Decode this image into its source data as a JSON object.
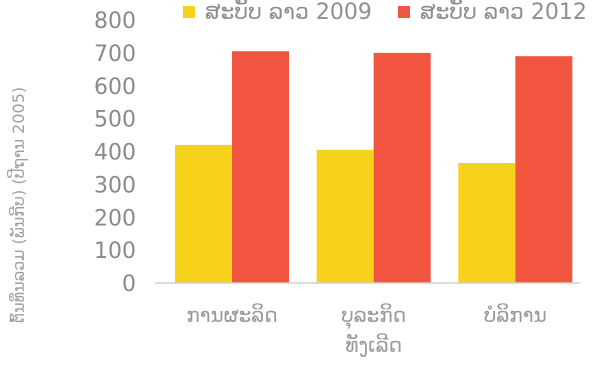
{
  "chart_data": {
    "type": "bar",
    "categories": [
      "ການຜະລິດ",
      "ບຸລະກິດ ທັງເລີດ",
      "ບໍລິການ"
    ],
    "series": [
      {
        "name": "ສະບັບ ລາວ 2009",
        "values": [
          420,
          405,
          365
        ],
        "color": "#f7d21a"
      },
      {
        "name": "ສະບັບ ລາວ 2012",
        "values": [
          705,
          700,
          690
        ],
        "color": "#f2553f"
      }
    ],
    "ylim": [
      0,
      800
    ],
    "yticks": [
      0,
      100,
      200,
      300,
      400,
      500,
      600,
      700,
      800
    ],
    "ylabel": "ຕົ້ນທຶນລວມ (ພັນກີບ) (ປີຖານ 2005)",
    "legend_position": "top",
    "grid": false
  }
}
